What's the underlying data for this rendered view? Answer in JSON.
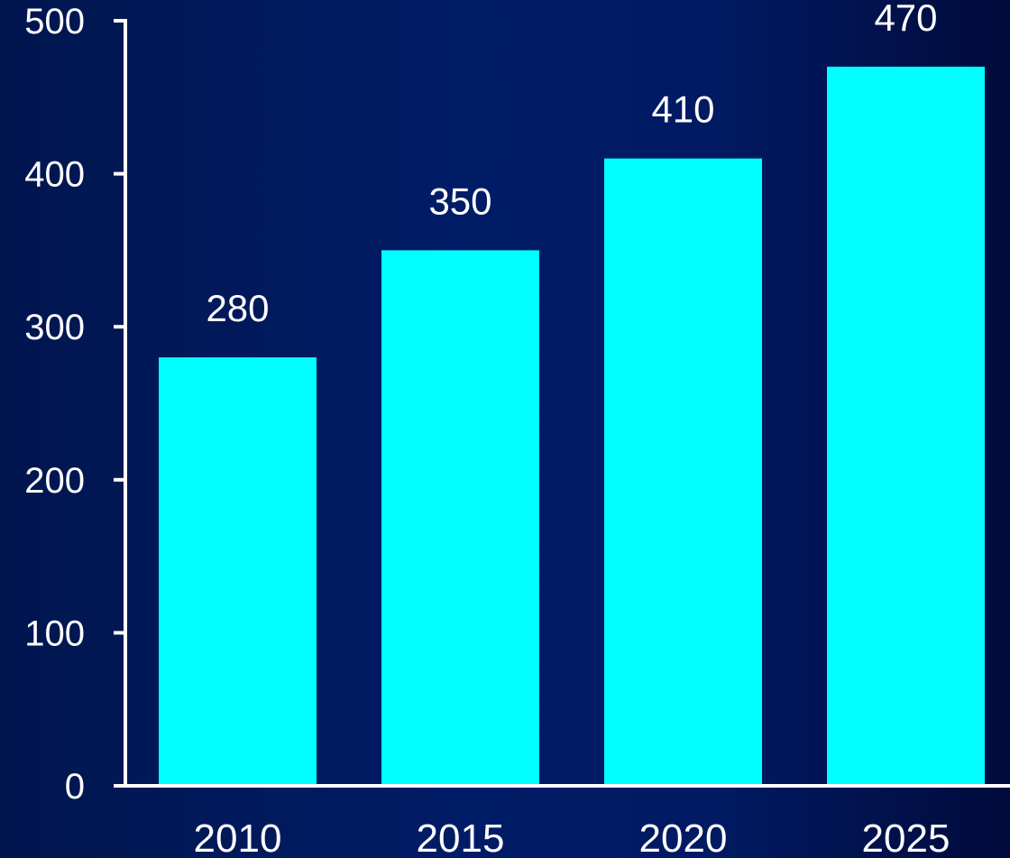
{
  "chart_data": {
    "type": "bar",
    "title": "",
    "xlabel": "",
    "ylabel": "",
    "categories": [
      "2010",
      "2015",
      "2020",
      "2025"
    ],
    "values": [
      280,
      350,
      410,
      470
    ],
    "data_labels": [
      "280",
      "350",
      "410",
      "470"
    ],
    "ylim": [
      0,
      500
    ],
    "yticks": [
      0,
      100,
      200,
      300,
      400,
      500
    ],
    "ytick_labels": [
      "0",
      "100",
      "200",
      "300",
      "400",
      "500"
    ],
    "grid": false,
    "legend": "none",
    "colors": {
      "bar": "#00ffff",
      "axis": "#ffffff",
      "text": "#ffffff",
      "background": "#011a63"
    }
  }
}
